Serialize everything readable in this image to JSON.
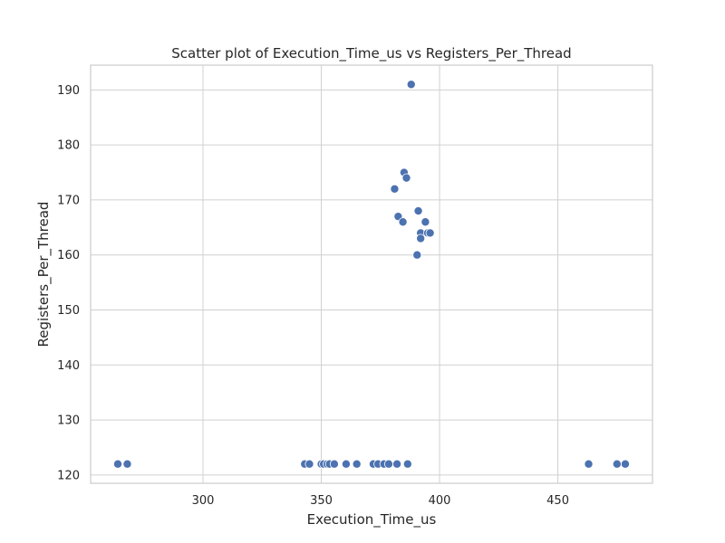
{
  "chart_data": {
    "type": "scatter",
    "title": "Scatter plot of Execution_Time_us vs Registers_Per_Thread",
    "xlabel": "Execution_Time_us",
    "ylabel": "Registers_Per_Thread",
    "xlim": [
      252.5,
      490
    ],
    "ylim": [
      118.5,
      194.5
    ],
    "xticks": [
      300,
      350,
      400,
      450
    ],
    "yticks": [
      120,
      130,
      140,
      150,
      160,
      170,
      180,
      190
    ],
    "grid": true,
    "colors": {
      "marker": "#4c72b0",
      "grid": "#d0d0d0",
      "frame": "#cccccc"
    },
    "points": [
      {
        "x": 264.0,
        "y": 122
      },
      {
        "x": 268.0,
        "y": 122
      },
      {
        "x": 343.0,
        "y": 122
      },
      {
        "x": 345.0,
        "y": 122
      },
      {
        "x": 350.0,
        "y": 122
      },
      {
        "x": 351.0,
        "y": 122
      },
      {
        "x": 352.5,
        "y": 122
      },
      {
        "x": 353.5,
        "y": 122
      },
      {
        "x": 355.5,
        "y": 122
      },
      {
        "x": 360.5,
        "y": 122
      },
      {
        "x": 365.0,
        "y": 122
      },
      {
        "x": 372.0,
        "y": 122
      },
      {
        "x": 374.0,
        "y": 122
      },
      {
        "x": 376.5,
        "y": 122
      },
      {
        "x": 378.5,
        "y": 122
      },
      {
        "x": 382.0,
        "y": 122
      },
      {
        "x": 386.5,
        "y": 122
      },
      {
        "x": 463.0,
        "y": 122
      },
      {
        "x": 475.0,
        "y": 122
      },
      {
        "x": 478.5,
        "y": 122
      },
      {
        "x": 388.0,
        "y": 191
      },
      {
        "x": 385.0,
        "y": 175
      },
      {
        "x": 386.0,
        "y": 174
      },
      {
        "x": 381.0,
        "y": 172
      },
      {
        "x": 391.0,
        "y": 168
      },
      {
        "x": 382.5,
        "y": 167
      },
      {
        "x": 384.5,
        "y": 166
      },
      {
        "x": 394.0,
        "y": 166
      },
      {
        "x": 392.0,
        "y": 164
      },
      {
        "x": 395.0,
        "y": 164
      },
      {
        "x": 396.0,
        "y": 164
      },
      {
        "x": 392.0,
        "y": 163
      },
      {
        "x": 390.5,
        "y": 160
      }
    ]
  }
}
